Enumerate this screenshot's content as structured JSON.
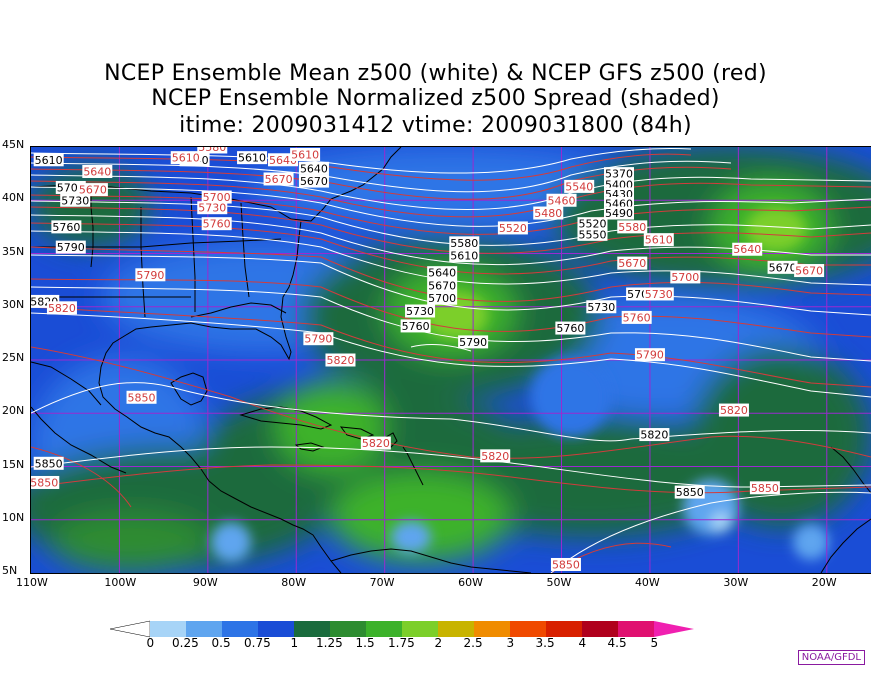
{
  "titles": {
    "line1": "NCEP Ensemble Mean z500 (white) & NCEP GFS z500 (red)",
    "line2": "NCEP Ensemble Normalized z500 Spread (shaded)",
    "line3": "itime: 2009031412    vtime: 2009031800 (84h)"
  },
  "map_axes": {
    "lon_labels": [
      "110W",
      "100W",
      "90W",
      "80W",
      "70W",
      "60W",
      "50W",
      "40W",
      "30W",
      "20W"
    ],
    "lat_labels": [
      "45N",
      "40N",
      "35N",
      "30N",
      "25N",
      "20N",
      "15N",
      "10N",
      "5N"
    ],
    "lon_range_deg": [
      -110,
      -15
    ],
    "lat_range_deg": [
      5,
      45
    ]
  },
  "ensemble_mean_labels": [
    {
      "text": "5610",
      "lon": -108,
      "lat": 43.8
    },
    {
      "text": "5640",
      "lon": -91.5,
      "lat": 43.8
    },
    {
      "text": "5610",
      "lon": -85,
      "lat": 44.0
    },
    {
      "text": "5640",
      "lon": -78,
      "lat": 43.0
    },
    {
      "text": "5670",
      "lon": -78,
      "lat": 41.8
    },
    {
      "text": "5700",
      "lon": -105.5,
      "lat": 41.2
    },
    {
      "text": "5730",
      "lon": -105,
      "lat": 40.0
    },
    {
      "text": "5760",
      "lon": -106,
      "lat": 37.5
    },
    {
      "text": "5790",
      "lon": -105.5,
      "lat": 35.6
    },
    {
      "text": "5820",
      "lon": -108.5,
      "lat": 30.5
    },
    {
      "text": "5580",
      "lon": -61,
      "lat": 36.0
    },
    {
      "text": "5610",
      "lon": -61,
      "lat": 34.8
    },
    {
      "text": "5640",
      "lon": -63.5,
      "lat": 33.2
    },
    {
      "text": "5670",
      "lon": -63.5,
      "lat": 32.0
    },
    {
      "text": "5700",
      "lon": -63.5,
      "lat": 30.8
    },
    {
      "text": "5730",
      "lon": -66,
      "lat": 29.6
    },
    {
      "text": "5760",
      "lon": -66.5,
      "lat": 28.2
    },
    {
      "text": "5790",
      "lon": -60,
      "lat": 26.7
    },
    {
      "text": "5370",
      "lon": -43.5,
      "lat": 42.5
    },
    {
      "text": "5400",
      "lon": -43.5,
      "lat": 41.5
    },
    {
      "text": "5430",
      "lon": -43.5,
      "lat": 40.6
    },
    {
      "text": "5460",
      "lon": -43.5,
      "lat": 39.7
    },
    {
      "text": "5490",
      "lon": -43.5,
      "lat": 38.8
    },
    {
      "text": "5520",
      "lon": -46.5,
      "lat": 37.8
    },
    {
      "text": "5550",
      "lon": -46.5,
      "lat": 36.8
    },
    {
      "text": "5700",
      "lon": -41,
      "lat": 31.2
    },
    {
      "text": "5730",
      "lon": -45.5,
      "lat": 30.0
    },
    {
      "text": "5760",
      "lon": -49,
      "lat": 28.0
    },
    {
      "text": "5670",
      "lon": -25,
      "lat": 33.7
    },
    {
      "text": "5820",
      "lon": -39.5,
      "lat": 18.0
    },
    {
      "text": "5850",
      "lon": -108,
      "lat": 15.3
    },
    {
      "text": "5850",
      "lon": -35.5,
      "lat": 12.6
    }
  ],
  "gfs_labels": [
    {
      "text": "5640",
      "lon": -102.5,
      "lat": 42.7
    },
    {
      "text": "5610",
      "lon": -92.5,
      "lat": 44.0
    },
    {
      "text": "5580",
      "lon": -89.5,
      "lat": 45.0
    },
    {
      "text": "5640",
      "lon": -81.5,
      "lat": 43.8
    },
    {
      "text": "5610",
      "lon": -79,
      "lat": 44.3
    },
    {
      "text": "5670",
      "lon": -82,
      "lat": 42.0
    },
    {
      "text": "5670",
      "lon": -103,
      "lat": 41.0
    },
    {
      "text": "5700",
      "lon": -89,
      "lat": 40.3
    },
    {
      "text": "5730",
      "lon": -89.5,
      "lat": 39.3
    },
    {
      "text": "5760",
      "lon": -89,
      "lat": 37.8
    },
    {
      "text": "5790",
      "lon": -96.5,
      "lat": 33.0
    },
    {
      "text": "5820",
      "lon": -106.5,
      "lat": 29.9
    },
    {
      "text": "5790",
      "lon": -77.5,
      "lat": 27.0
    },
    {
      "text": "5820",
      "lon": -75,
      "lat": 25.0
    },
    {
      "text": "5850",
      "lon": -97.5,
      "lat": 21.5
    },
    {
      "text": "5850",
      "lon": -108.5,
      "lat": 13.5
    },
    {
      "text": "5820",
      "lon": -71,
      "lat": 17.2
    },
    {
      "text": "5820",
      "lon": -57.5,
      "lat": 16.0
    },
    {
      "text": "5540",
      "lon": -48,
      "lat": 41.3
    },
    {
      "text": "5480",
      "lon": -51.5,
      "lat": 38.8
    },
    {
      "text": "5460",
      "lon": -50,
      "lat": 40.0
    },
    {
      "text": "5520",
      "lon": -55.5,
      "lat": 37.4
    },
    {
      "text": "5580",
      "lon": -42,
      "lat": 37.5
    },
    {
      "text": "5610",
      "lon": -39,
      "lat": 36.3
    },
    {
      "text": "5670",
      "lon": -42,
      "lat": 34.1
    },
    {
      "text": "5700",
      "lon": -36,
      "lat": 32.8
    },
    {
      "text": "5730",
      "lon": -39,
      "lat": 31.2
    },
    {
      "text": "5760",
      "lon": -41.5,
      "lat": 29.0
    },
    {
      "text": "5790",
      "lon": -40,
      "lat": 25.5
    },
    {
      "text": "5820",
      "lon": -30.5,
      "lat": 20.3
    },
    {
      "text": "5640",
      "lon": -29,
      "lat": 35.4
    },
    {
      "text": "5670",
      "lon": -22,
      "lat": 33.4
    },
    {
      "text": "5850",
      "lon": -27,
      "lat": 13.0
    },
    {
      "text": "5850",
      "lon": -49.5,
      "lat": 5.8
    }
  ],
  "colorbar": {
    "levels": [
      "0",
      "0.25",
      "0.5",
      "0.75",
      "1",
      "1.25",
      "1.5",
      "1.75",
      "2",
      "2.5",
      "3",
      "3.5",
      "4",
      "4.5",
      "5"
    ],
    "colors": [
      "#ffffff",
      "#a7d4f7",
      "#5fa5ef",
      "#2d74e6",
      "#1a4dd6",
      "#1a6b3d",
      "#2d8c30",
      "#3cb22a",
      "#7ccf2a",
      "#c8b400",
      "#f08c00",
      "#f04a00",
      "#d82000",
      "#b0001c",
      "#e01070",
      "#f020b0"
    ]
  },
  "credit": "NOAA/GFDL"
}
